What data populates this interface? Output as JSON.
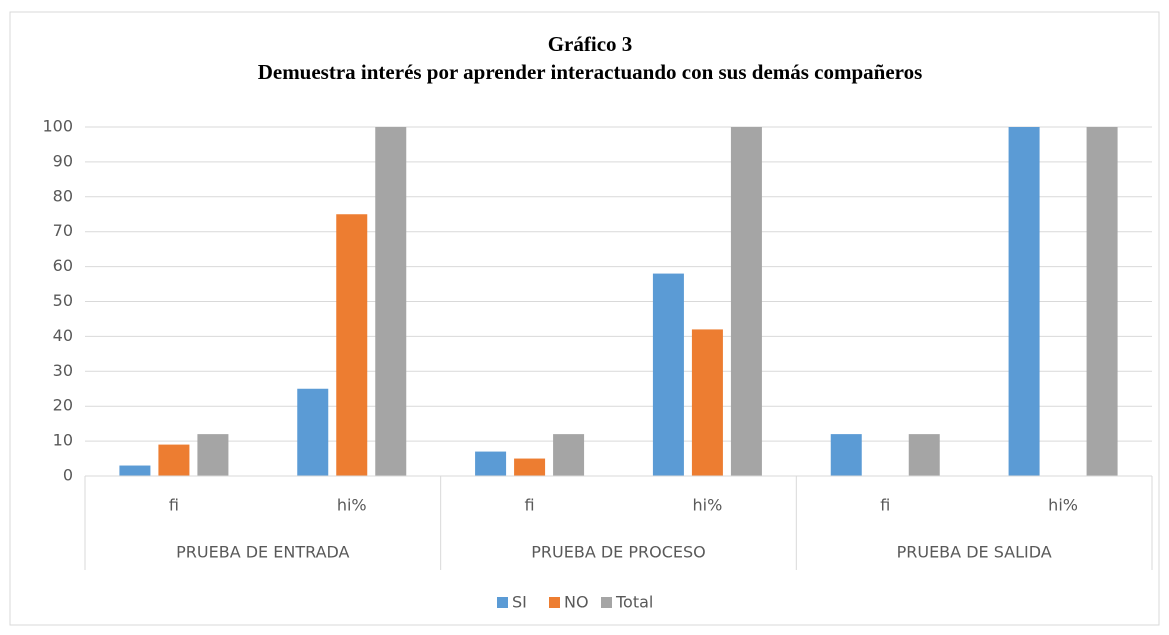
{
  "chart_data": {
    "type": "bar",
    "title": "Gráfico 3",
    "subtitle": "Demuestra interés por aprender interactuando con sus demás compañeros",
    "categories": [
      "fi",
      "hi%",
      "fi",
      "hi%",
      "fi",
      "hi%"
    ],
    "groups": [
      "PRUEBA DE ENTRADA",
      "PRUEBA DE PROCESO",
      "PRUEBA DE SALIDA"
    ],
    "series": [
      {
        "name": "SI",
        "color": "#5b9bd5",
        "values": [
          3,
          25,
          7,
          58,
          12,
          100
        ]
      },
      {
        "name": "NO",
        "color": "#ed7d31",
        "values": [
          9,
          75,
          5,
          42,
          0,
          0
        ]
      },
      {
        "name": "Total",
        "color": "#a5a5a5",
        "values": [
          12,
          100,
          12,
          100,
          12,
          100
        ]
      }
    ],
    "ylim": [
      0,
      100
    ],
    "yticks": [
      0,
      10,
      20,
      30,
      40,
      50,
      60,
      70,
      80,
      90,
      100
    ],
    "grid": true,
    "legend": "bottom"
  }
}
